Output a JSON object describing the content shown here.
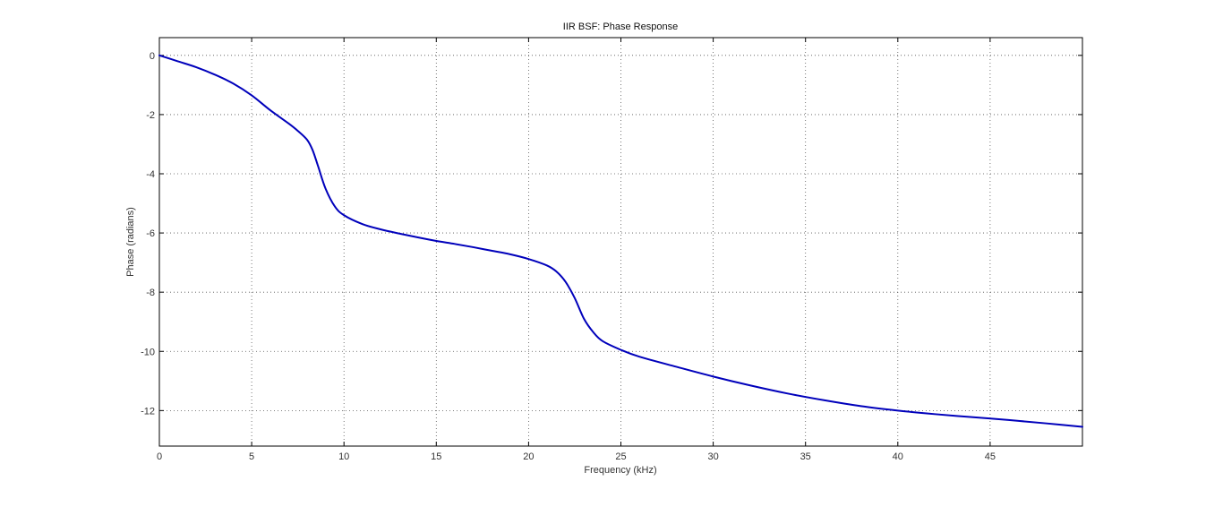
{
  "chart_data": {
    "type": "line",
    "title": "IIR BSF: Phase Response",
    "xlabel": "Frequency (kHz)",
    "ylabel": "Phase (radians)",
    "xlim": [
      0,
      50
    ],
    "ylim": [
      -13.2,
      0.6
    ],
    "xticks": [
      0,
      5,
      10,
      15,
      20,
      25,
      30,
      35,
      40,
      45
    ],
    "yticks": [
      0,
      -2,
      -4,
      -6,
      -8,
      -10,
      -12
    ],
    "xtick_labels": [
      "0",
      "5",
      "10",
      "15",
      "20",
      "25",
      "30",
      "35",
      "40",
      "45"
    ],
    "ytick_labels": [
      "0",
      "-2",
      "-4",
      "-6",
      "-8",
      "-10",
      "-12"
    ],
    "grid": true,
    "line_color": "#0000bb",
    "series": [
      {
        "x": [
          0,
          1,
          2,
          3,
          4,
          5,
          6,
          7,
          7.5,
          8,
          8.3,
          8.6,
          9,
          9.5,
          10,
          11,
          12,
          13,
          14,
          15,
          16,
          17,
          18,
          19,
          20,
          21,
          21.5,
          22,
          22.5,
          23,
          23.5,
          24,
          25,
          26,
          28,
          30,
          32,
          34,
          36,
          38,
          40,
          42,
          44,
          46,
          48,
          50
        ],
        "y": [
          0,
          -0.2,
          -0.4,
          -0.65,
          -0.95,
          -1.35,
          -1.85,
          -2.3,
          -2.55,
          -2.85,
          -3.2,
          -3.75,
          -4.5,
          -5.1,
          -5.4,
          -5.7,
          -5.88,
          -6.02,
          -6.15,
          -6.27,
          -6.37,
          -6.48,
          -6.6,
          -6.72,
          -6.88,
          -7.1,
          -7.3,
          -7.65,
          -8.2,
          -8.9,
          -9.35,
          -9.65,
          -9.95,
          -10.18,
          -10.52,
          -10.85,
          -11.15,
          -11.42,
          -11.65,
          -11.85,
          -12.0,
          -12.12,
          -12.22,
          -12.32,
          -12.43,
          -12.55
        ]
      }
    ]
  }
}
